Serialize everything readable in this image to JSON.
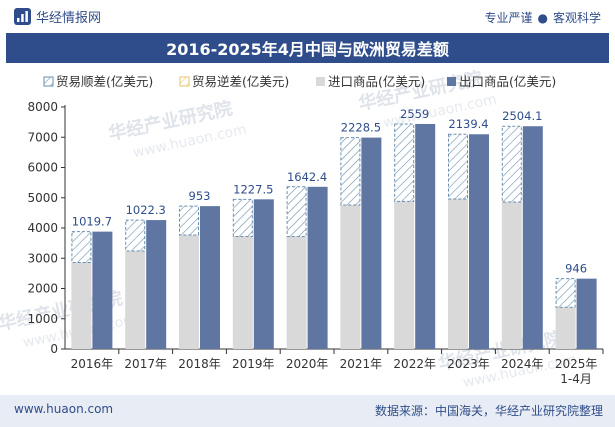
{
  "header": {
    "brand": "华经情报网",
    "slogan_left": "专业严谨",
    "slogan_sep": "●",
    "slogan_right": "客观科学"
  },
  "title": "2016-2025年4月中国与欧洲贸易差额",
  "footer": {
    "url": "www.huaon.com",
    "source": "数据来源：中国海关，华经产业研究院整理"
  },
  "watermark": {
    "cn": "华经产业研究院",
    "url": "www.huaon.com"
  },
  "colors": {
    "title_bg": "#2f4d8a",
    "import": "#d9d9d9",
    "export": "#5f76a3",
    "surplus_stroke": "#6a8fb0",
    "deficit_stroke": "#e8c66a",
    "label": "#2f4d8a"
  },
  "chart_data": {
    "type": "bar",
    "title": "2016-2025年4月中国与欧洲贸易差额",
    "categories": [
      "2016年",
      "2017年",
      "2018年",
      "2019年",
      "2020年",
      "2021年",
      "2022年",
      "2023年",
      "2024年",
      "2025年\n1-4月"
    ],
    "legend": [
      "贸易顺差(亿美元)",
      "贸易逆差(亿美元)",
      "进口商品(亿美元)",
      "出口商品(亿美元)"
    ],
    "legend_placement": "top",
    "ylim": [
      0,
      8000
    ],
    "yticks": [
      0,
      1000,
      2000,
      3000,
      4000,
      5000,
      6000,
      7000,
      8000
    ],
    "grid": false,
    "series": [
      {
        "name": "贸易顺差(亿美元)",
        "values": [
          1019.7,
          1022.3,
          953,
          1227.5,
          1642.4,
          2228.5,
          2559,
          2139.4,
          2504.1,
          946
        ]
      },
      {
        "name": "贸易逆差(亿美元)",
        "values": [
          0,
          0,
          0,
          0,
          0,
          0,
          0,
          0,
          0,
          0
        ]
      },
      {
        "name": "进口商品(亿美元)",
        "values": [
          2860,
          3240,
          3770,
          3720,
          3720,
          4760,
          4880,
          4960,
          4860,
          1380
        ]
      },
      {
        "name": "出口商品(亿美元)",
        "values": [
          3880,
          4262,
          4723,
          4948,
          5362,
          6989,
          7439,
          7099,
          7364,
          2326
        ]
      }
    ],
    "data_labels": [
      "1019.7",
      "1022.3",
      "953",
      "1227.5",
      "1642.4",
      "2228.5",
      "2559",
      "2139.4",
      "2504.1",
      "946"
    ]
  }
}
